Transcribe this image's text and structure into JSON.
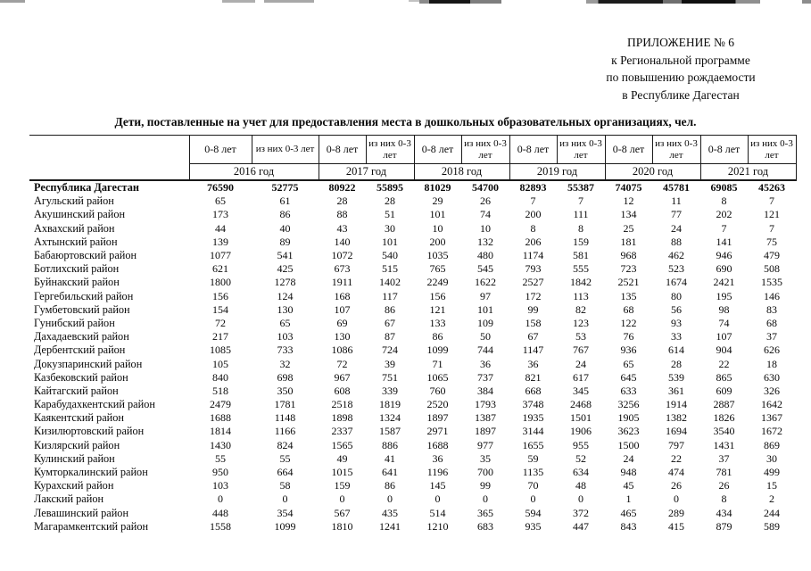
{
  "appendix": {
    "lines": [
      "ПРИЛОЖЕНИЕ № 6",
      "к Региональной программе",
      "по повышению рождаемости",
      "в Республике Дагестан"
    ]
  },
  "title": "Дети, поставленные на учет для предоставления места в дошкольных образовательных организациях, чел.",
  "table": {
    "age_col_label": "0-8 лет",
    "age_col_label2": "из них 0-3 лет",
    "year_labels": [
      "2016 год",
      "2017 год",
      "2018 год",
      "2019 год",
      "2020 год",
      "2021 год"
    ],
    "rows": [
      {
        "name": "Республика Дагестан",
        "bold": true,
        "values": [
          76590,
          52775,
          80922,
          55895,
          81029,
          54700,
          82893,
          55387,
          74075,
          45781,
          69085,
          45263
        ]
      },
      {
        "name": "Агульский район",
        "bold": false,
        "values": [
          65,
          61,
          28,
          28,
          29,
          26,
          7,
          7,
          12,
          11,
          8,
          7
        ]
      },
      {
        "name": "Акушинский район",
        "bold": false,
        "values": [
          173,
          86,
          88,
          51,
          101,
          74,
          200,
          111,
          134,
          77,
          202,
          121
        ]
      },
      {
        "name": "Ахвахский район",
        "bold": false,
        "values": [
          44,
          40,
          43,
          30,
          10,
          10,
          8,
          8,
          25,
          24,
          7,
          7
        ]
      },
      {
        "name": "Ахтынский район",
        "bold": false,
        "values": [
          139,
          89,
          140,
          101,
          200,
          132,
          206,
          159,
          181,
          88,
          141,
          75
        ]
      },
      {
        "name": "Бабаюртовский район",
        "bold": false,
        "values": [
          1077,
          541,
          1072,
          540,
          1035,
          480,
          1174,
          581,
          968,
          462,
          946,
          479
        ]
      },
      {
        "name": "Ботлихский район",
        "bold": false,
        "values": [
          621,
          425,
          673,
          515,
          765,
          545,
          793,
          555,
          723,
          523,
          690,
          508
        ]
      },
      {
        "name": "Буйнакский район",
        "bold": false,
        "values": [
          1800,
          1278,
          1911,
          1402,
          2249,
          1622,
          2527,
          1842,
          2521,
          1674,
          2421,
          1535
        ]
      },
      {
        "name": "Гергебильский район",
        "bold": false,
        "values": [
          156,
          124,
          168,
          117,
          156,
          97,
          172,
          113,
          135,
          80,
          195,
          146
        ]
      },
      {
        "name": "Гумбетовский район",
        "bold": false,
        "values": [
          154,
          130,
          107,
          86,
          121,
          101,
          99,
          82,
          68,
          56,
          98,
          83
        ]
      },
      {
        "name": "Гунибский район",
        "bold": false,
        "values": [
          72,
          65,
          69,
          67,
          133,
          109,
          158,
          123,
          122,
          93,
          74,
          68
        ]
      },
      {
        "name": "Дахадаевский район",
        "bold": false,
        "values": [
          217,
          103,
          130,
          87,
          86,
          50,
          67,
          53,
          76,
          33,
          107,
          37
        ]
      },
      {
        "name": "Дербентский район",
        "bold": false,
        "values": [
          1085,
          733,
          1086,
          724,
          1099,
          744,
          1147,
          767,
          936,
          614,
          904,
          626
        ]
      },
      {
        "name": "Докузпаринский район",
        "bold": false,
        "values": [
          105,
          32,
          72,
          39,
          71,
          36,
          36,
          24,
          65,
          28,
          22,
          18
        ]
      },
      {
        "name": "Казбековский район",
        "bold": false,
        "values": [
          840,
          698,
          967,
          751,
          1065,
          737,
          821,
          617,
          645,
          539,
          865,
          630
        ]
      },
      {
        "name": "Кайтагский район",
        "bold": false,
        "values": [
          518,
          350,
          608,
          339,
          760,
          384,
          668,
          345,
          633,
          361,
          609,
          326
        ]
      },
      {
        "name": "Карабудахкентский район",
        "bold": false,
        "values": [
          2479,
          1781,
          2518,
          1819,
          2520,
          1793,
          3748,
          2468,
          3256,
          1914,
          2887,
          1642
        ]
      },
      {
        "name": "Каякентский район",
        "bold": false,
        "values": [
          1688,
          1148,
          1898,
          1324,
          1897,
          1387,
          1935,
          1501,
          1905,
          1382,
          1826,
          1367
        ]
      },
      {
        "name": "Кизилюртовский район",
        "bold": false,
        "values": [
          1814,
          1166,
          2337,
          1587,
          2971,
          1897,
          3144,
          1906,
          3623,
          1694,
          3540,
          1672
        ]
      },
      {
        "name": "Кизлярский район",
        "bold": false,
        "values": [
          1430,
          824,
          1565,
          886,
          1688,
          977,
          1655,
          955,
          1500,
          797,
          1431,
          869
        ]
      },
      {
        "name": "Кулинский район",
        "bold": false,
        "values": [
          55,
          55,
          49,
          41,
          36,
          35,
          59,
          52,
          24,
          22,
          37,
          30
        ]
      },
      {
        "name": "Кумторкалинский район",
        "bold": false,
        "values": [
          950,
          664,
          1015,
          641,
          1196,
          700,
          1135,
          634,
          948,
          474,
          781,
          499
        ]
      },
      {
        "name": "Курахский район",
        "bold": false,
        "values": [
          103,
          58,
          159,
          86,
          145,
          99,
          70,
          48,
          45,
          26,
          26,
          15
        ]
      },
      {
        "name": "Лакский район",
        "bold": false,
        "values": [
          0,
          0,
          0,
          0,
          0,
          0,
          0,
          0,
          1,
          0,
          8,
          2
        ]
      },
      {
        "name": "Левашинский район",
        "bold": false,
        "values": [
          448,
          354,
          567,
          435,
          514,
          365,
          594,
          372,
          465,
          289,
          434,
          244
        ]
      },
      {
        "name": "Магарамкентский район",
        "bold": false,
        "values": [
          1558,
          1099,
          1810,
          1241,
          1210,
          683,
          935,
          447,
          843,
          415,
          879,
          589
        ]
      }
    ]
  }
}
